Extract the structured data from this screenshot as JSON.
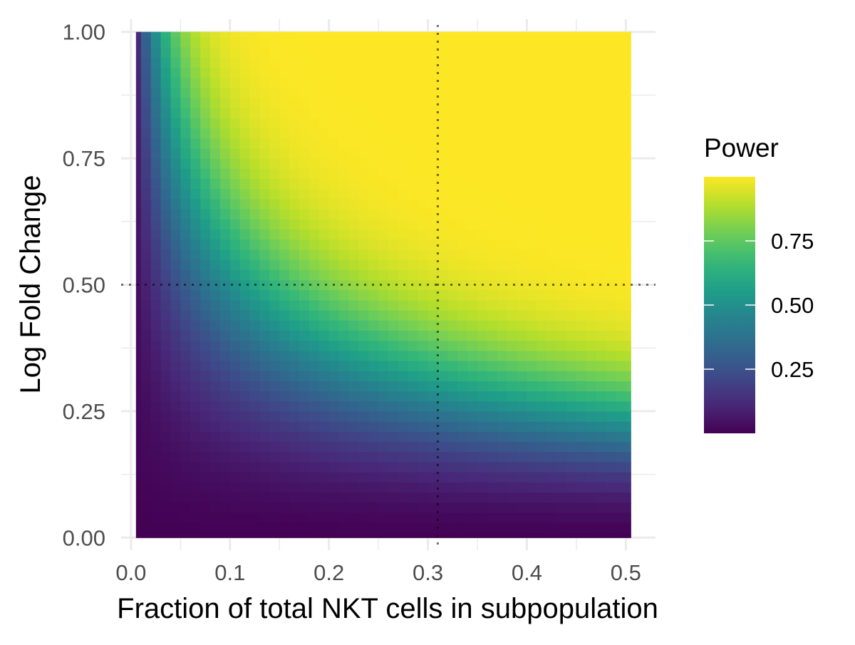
{
  "chart_data": {
    "type": "heatmap",
    "title": "",
    "xlabel": "Fraction of total NKT cells in subpopulation",
    "ylabel": "Log Fold Change",
    "xlim": [
      -0.01,
      0.53
    ],
    "ylim": [
      -0.025,
      1.025
    ],
    "x_ticks": [
      0.0,
      0.1,
      0.2,
      0.3,
      0.4,
      0.5
    ],
    "x_tick_labels": [
      "0.0",
      "0.1",
      "0.2",
      "0.3",
      "0.4",
      "0.5"
    ],
    "y_ticks": [
      0.0,
      0.25,
      0.5,
      0.75,
      1.0
    ],
    "y_tick_labels": [
      "0.00",
      "0.25",
      "0.50",
      "0.75",
      "1.00"
    ],
    "x_range": [
      0.005,
      0.505
    ],
    "y_range": [
      0.0,
      1.0
    ],
    "x_step": 0.01,
    "y_step": 0.02,
    "grid": true,
    "reference_lines": {
      "x": 0.31,
      "y": 0.5
    },
    "power_samples": [
      {
        "x": 0.005,
        "y": 1.0,
        "value": 0.02
      },
      {
        "x": 0.05,
        "y": 1.0,
        "value": 0.6
      },
      {
        "x": 0.1,
        "y": 1.0,
        "value": 0.9
      },
      {
        "x": 0.2,
        "y": 0.75,
        "value": 0.93
      },
      {
        "x": 0.1,
        "y": 0.5,
        "value": 0.4
      },
      {
        "x": 0.31,
        "y": 0.5,
        "value": 0.9
      },
      {
        "x": 0.5,
        "y": 0.5,
        "value": 0.98
      },
      {
        "x": 0.5,
        "y": 0.25,
        "value": 0.45
      },
      {
        "x": 0.3,
        "y": 0.25,
        "value": 0.2
      },
      {
        "x": 0.5,
        "y": 0.1,
        "value": 0.08
      },
      {
        "x": 0.2,
        "y": 0.0,
        "value": 0.0
      }
    ],
    "legend": {
      "title": "Power",
      "position": "right",
      "ticks": [
        0.25,
        0.5,
        0.75
      ],
      "tick_labels": [
        "0.25",
        "0.50",
        "0.75"
      ],
      "range": [
        0.0,
        1.0
      ]
    },
    "colormap": "viridis"
  }
}
